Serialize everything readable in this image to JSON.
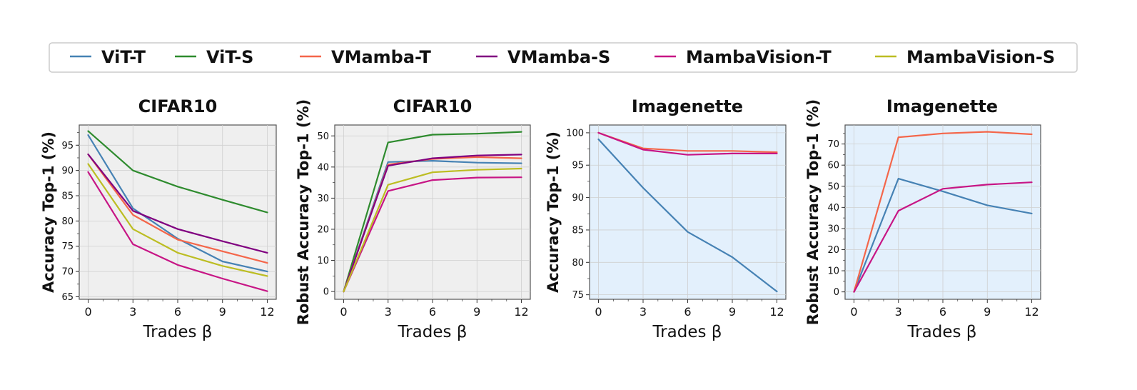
{
  "legend": {
    "entries": [
      {
        "name": "ViT-T",
        "color": "#4682b4"
      },
      {
        "name": "ViT-S",
        "color": "#2e8b2e"
      },
      {
        "name": "VMamba-T",
        "color": "#f4664a"
      },
      {
        "name": "VMamba-S",
        "color": "#800080"
      },
      {
        "name": "MambaVision-T",
        "color": "#c71585"
      },
      {
        "name": "MambaVision-S",
        "color": "#bcbd22"
      }
    ]
  },
  "chart_data": [
    {
      "type": "line",
      "title": "CIFAR10",
      "xlabel": "Trades β",
      "ylabel": "Accuracy Top-1 (%)",
      "background": "#efefef",
      "x": [
        0,
        3,
        6,
        9,
        12
      ],
      "xlim": [
        -0.6,
        12.6
      ],
      "ylim": [
        64.5,
        99
      ],
      "yticks": [
        65,
        70,
        75,
        80,
        85,
        90,
        95
      ],
      "series": [
        {
          "name": "ViT-T",
          "values": [
            97,
            82.5,
            76.5,
            72,
            70
          ]
        },
        {
          "name": "ViT-S",
          "values": [
            97.8,
            90,
            86.8,
            84.2,
            81.7
          ]
        },
        {
          "name": "VMamba-T",
          "values": [
            93.2,
            81.2,
            76.3,
            74,
            71.7
          ]
        },
        {
          "name": "VMamba-S",
          "values": [
            93.2,
            82,
            78.4,
            76,
            73.7
          ]
        },
        {
          "name": "MambaVision-T",
          "values": [
            89.7,
            75.4,
            71.3,
            68.6,
            66.1
          ]
        },
        {
          "name": "MambaVision-S",
          "values": [
            91.3,
            78.4,
            73.7,
            71.1,
            69.1
          ]
        }
      ]
    },
    {
      "type": "line",
      "title": "CIFAR10",
      "xlabel": "Trades β",
      "ylabel": "Robust Accuracy Top-1 (%)",
      "background": "#efefef",
      "x": [
        0,
        3,
        6,
        9,
        12
      ],
      "xlim": [
        -0.6,
        12.6
      ],
      "ylim": [
        -2.5,
        53.5
      ],
      "yticks": [
        0,
        10,
        20,
        30,
        40,
        50
      ],
      "series": [
        {
          "name": "ViT-T",
          "values": [
            0,
            41.6,
            42,
            41.4,
            41.2
          ]
        },
        {
          "name": "ViT-S",
          "values": [
            0,
            47.9,
            50.4,
            50.7,
            51.3
          ]
        },
        {
          "name": "VMamba-T",
          "values": [
            0,
            40.8,
            42.6,
            43.2,
            42.8
          ]
        },
        {
          "name": "VMamba-S",
          "values": [
            0,
            40.4,
            42.8,
            43.7,
            44
          ]
        },
        {
          "name": "MambaVision-T",
          "values": [
            0,
            32.3,
            35.8,
            36.6,
            36.7
          ]
        },
        {
          "name": "MambaVision-S",
          "values": [
            0,
            34.3,
            38.3,
            39.1,
            39.5
          ]
        }
      ]
    },
    {
      "type": "line",
      "title": "Imagenette",
      "xlabel": "Trades β",
      "ylabel": "Accuracy Top-1 (%)",
      "background": "#e3f0fc",
      "x": [
        0,
        3,
        6,
        9,
        12
      ],
      "xlim": [
        -0.6,
        12.6
      ],
      "ylim": [
        74.3,
        101.2
      ],
      "yticks": [
        75,
        80,
        85,
        90,
        95,
        100
      ],
      "series": [
        {
          "name": "ViT-T",
          "values": [
            99,
            91.5,
            84.7,
            80.8,
            75.5
          ]
        },
        {
          "name": "VMamba-T",
          "values": [
            100,
            97.6,
            97.2,
            97.2,
            97
          ]
        },
        {
          "name": "MambaVision-T",
          "values": [
            100,
            97.4,
            96.6,
            96.8,
            96.8
          ]
        }
      ]
    },
    {
      "type": "line",
      "title": "Imagenette",
      "xlabel": "Trades β",
      "ylabel": "Robust Accuracy Top-1 (%)",
      "background": "#e3f0fc",
      "x": [
        0,
        3,
        6,
        9,
        12
      ],
      "xlim": [
        -0.6,
        12.6
      ],
      "ylim": [
        -3.5,
        79
      ],
      "yticks": [
        0,
        10,
        20,
        30,
        40,
        50,
        60,
        70
      ],
      "series": [
        {
          "name": "ViT-T",
          "values": [
            0,
            53.6,
            47.6,
            41,
            37.1
          ]
        },
        {
          "name": "VMamba-T",
          "values": [
            0,
            73.2,
            75,
            75.8,
            74.6
          ]
        },
        {
          "name": "MambaVision-T",
          "values": [
            0,
            38.4,
            48.8,
            50.8,
            51.9
          ]
        }
      ]
    }
  ],
  "xtick_labels": [
    "0",
    "3",
    "6",
    "9",
    "12"
  ]
}
